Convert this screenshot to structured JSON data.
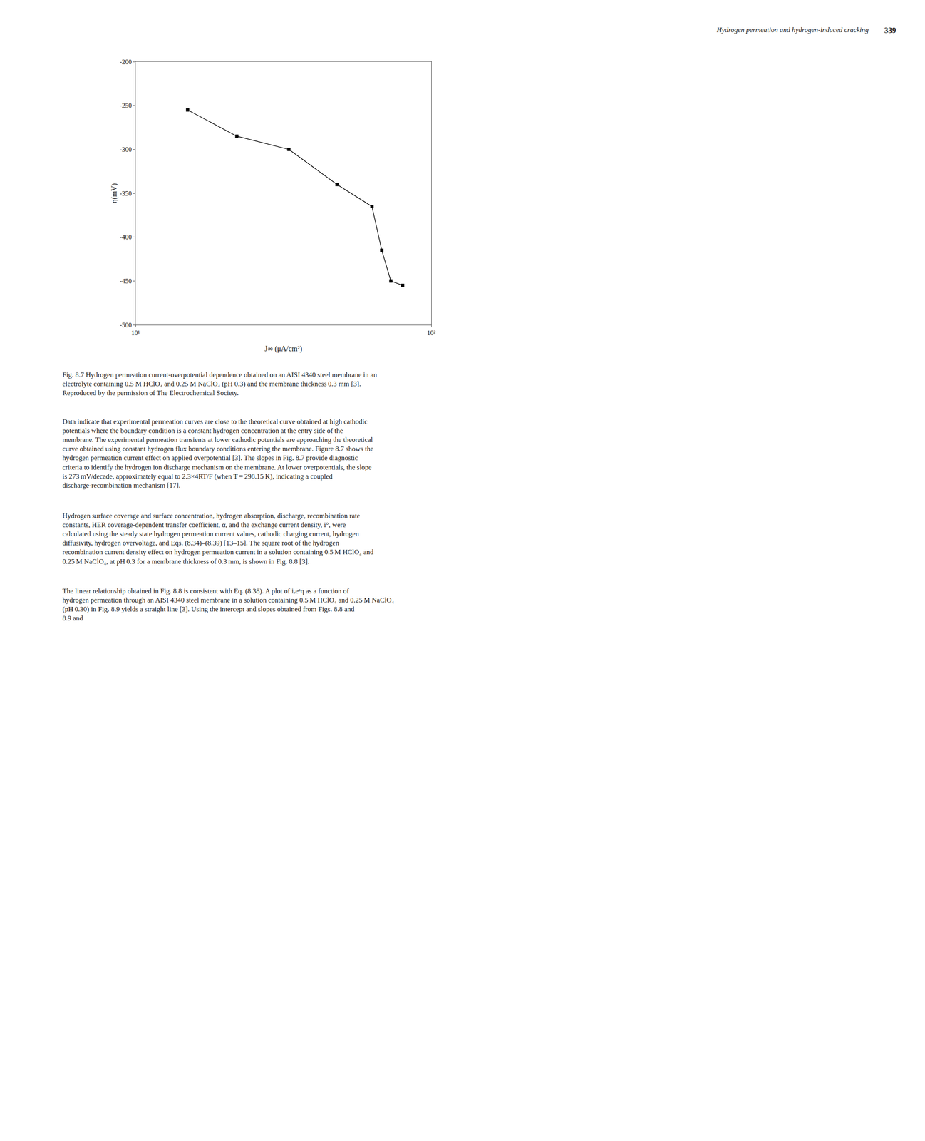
{
  "chart_data": {
    "type": "line",
    "log": "x",
    "x": [
      15.0,
      22.0,
      33.0,
      48.0,
      63.0,
      68.0,
      73.0,
      80.0
    ],
    "values": [
      -255,
      -285,
      -300,
      -340,
      -365,
      -415,
      -450,
      -455
    ],
    "color": "#000000",
    "marker": "square",
    "line_style": "solid",
    "grid": false,
    "xlabel": "J∞ (μA/cm²)",
    "ylabel": "η(mV)",
    "xlim": [
      10,
      100
    ],
    "xticks": [
      {
        "value": 10,
        "label": "10¹"
      },
      {
        "value": 100,
        "label": "10²"
      }
    ],
    "ylim": [
      -500,
      -200
    ],
    "yticks": [
      -200,
      -250,
      -300,
      -350,
      -400,
      -450,
      -500
    ],
    "annotations": [
      "339",
      "Hydrogen permeation and hydrogen-induced cracking",
      "Fig. 8.7 Hydrogen permeation current-overpotential dependence obtained on an AISI 4340 steel membrane in an electrolyte containing 0.5 M HClO₄ and 0.25 M NaClO₄ (pH 0.3) and the membrane thickness 0.3 mm [3]. Reproduced by the permission of The Electrochemical Society.",
      "Data indicate that experimental permeation curves are close to the theoretical curve obtained at high cathodic potentials where the boundary condition is a constant hydrogen concentration at the entry side of the membrane. The experimental permeation transients at lower cathodic potentials are approaching the theoretical curve obtained using constant hydrogen flux boundary conditions entering the membrane. Figure 8.7 shows the hydrogen permeation current effect on applied overpotential [3]. The slopes in Fig. 8.7 provide diagnostic criteria to identify the hydrogen ion discharge mechanism on the membrane. At lower overpotentials, the slope is 273 mV/decade, approximately equal to 2.3×4RT/F (when T = 298.15 K), indicating a coupled discharge-recombination mechanism [17].",
      "Hydrogen surface coverage and surface concentration, hydrogen absorption, discharge, recombination rate constants, HER coverage-dependent transfer coefficient, α, and the exchange current density, i°, were calculated using the steady state hydrogen permeation current values, cathodic charging current, hydrogen diffusivity, hydrogen overvoltage, and Eqs. (8.34)–(8.39) [13–15]. The square root of the hydrogen recombination current density effect on hydrogen permeation current in a solution containing 0.5 M HClO₄ and 0.25 M NaClO₄, at pH 0.3 for a membrane thickness of 0.3 mm, is shown in Fig. 8.8 [3].",
      "The linear relationship obtained in Fig. 8.8 is consistent with Eq. (8.38). A plot of iₑeᵃη as a function of hydrogen permeation through an AISI 4340 steel membrane in a solution containing 0.5 M HClO₄ and 0.25 M NaClO₄ (pH 0.30) in Fig. 8.9 yields a straight line [3]. Using the intercept and slopes obtained from Figs. 8.8 and 8.9 and"
    ]
  }
}
